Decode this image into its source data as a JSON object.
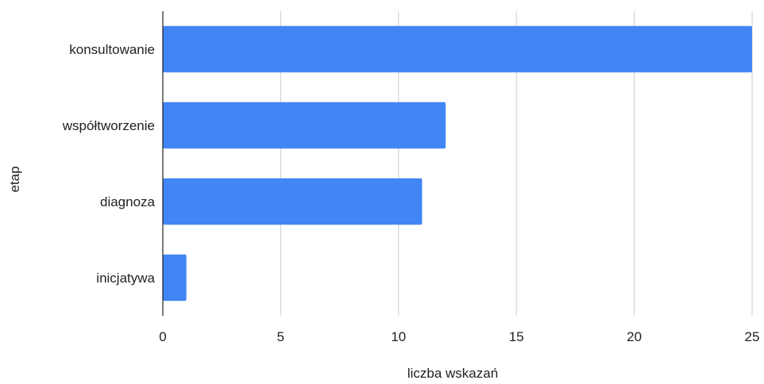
{
  "chart_data": {
    "type": "bar",
    "orientation": "horizontal",
    "categories": [
      "konsultowanie",
      "współtworzenie",
      "diagnoza",
      "inicjatywa"
    ],
    "values": [
      25,
      12,
      11,
      1
    ],
    "xlabel": "liczba wskazań",
    "ylabel": "etap",
    "xlim": [
      0,
      25
    ],
    "xticks": [
      "0",
      "5",
      "10",
      "15",
      "20",
      "25"
    ],
    "grid": "vertical",
    "legend": "none",
    "bar_color": "#4285f4"
  }
}
